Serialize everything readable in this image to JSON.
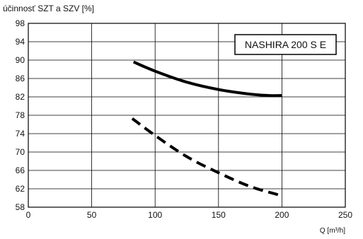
{
  "chart_data": {
    "type": "line",
    "title": "",
    "ylabel": "účinnosť SZT a SZV [%]",
    "xlabel": "Q [m³/h]",
    "xlim": [
      0,
      250
    ],
    "ylim": [
      58,
      98
    ],
    "x_ticks": [
      0,
      50,
      100,
      150,
      200,
      250
    ],
    "y_ticks": [
      58,
      62,
      66,
      70,
      74,
      78,
      82,
      86,
      90,
      94,
      98
    ],
    "grid": true,
    "legend_box": "NASHIRA 200 S E",
    "legend_position": "top-right",
    "series": [
      {
        "style": "solid",
        "color": "#000000",
        "x": [
          83,
          100,
          125,
          150,
          175,
          190,
          200
        ],
        "y": [
          89.6,
          87.6,
          85.2,
          83.6,
          82.6,
          82.3,
          82.3
        ]
      },
      {
        "style": "dashed",
        "color": "#000000",
        "x": [
          82,
          100,
          125,
          150,
          175,
          200
        ],
        "y": [
          77.3,
          73.6,
          69.0,
          65.5,
          62.5,
          60.5
        ]
      }
    ]
  }
}
